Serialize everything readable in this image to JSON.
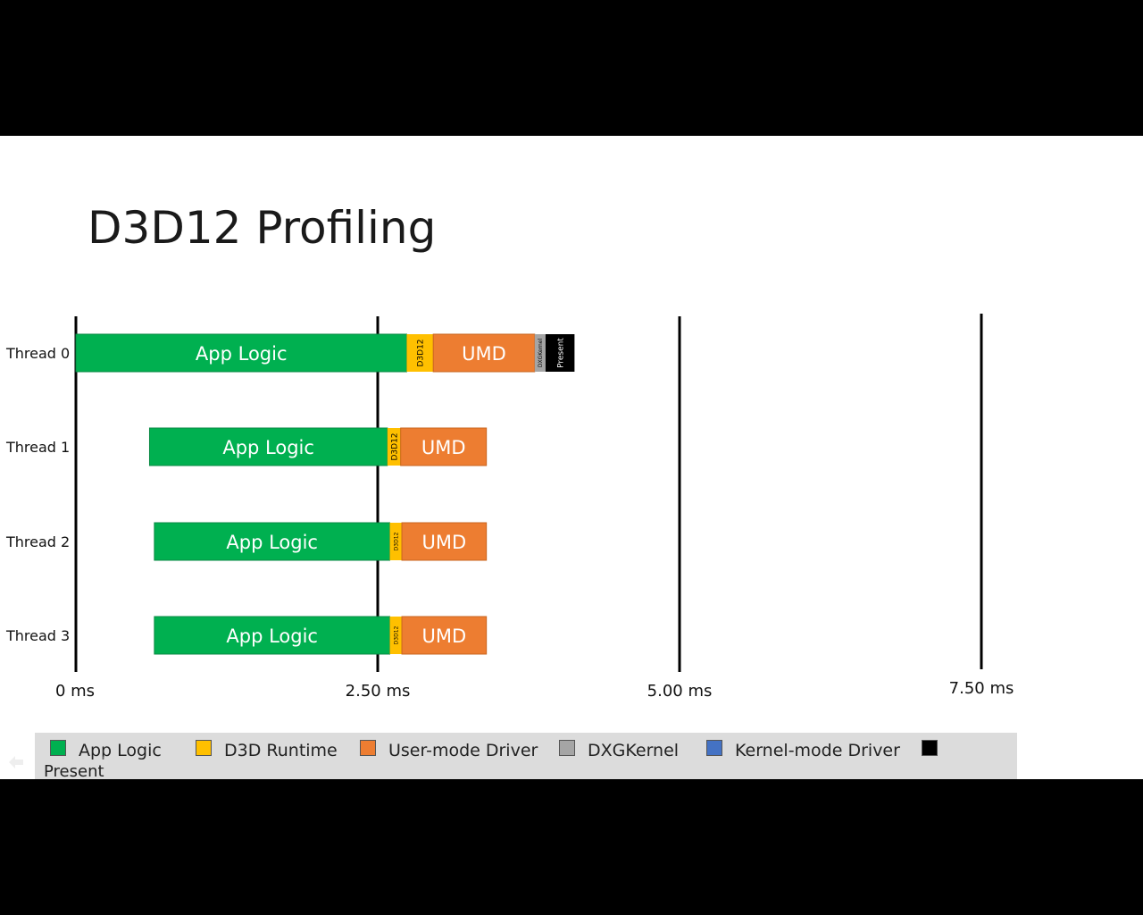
{
  "slide": {
    "title": "D3D12 Profiling"
  },
  "chart_data": {
    "type": "bar",
    "orientation": "horizontal-stacked-timeline",
    "xlabel": "",
    "ylabel": "",
    "xlim": [
      0,
      7.5
    ],
    "x_unit": "ms",
    "x_ticks": [
      {
        "value": 0,
        "label": "0 ms"
      },
      {
        "value": 2.5,
        "label": "2.50 ms"
      },
      {
        "value": 5.0,
        "label": "5.00 ms"
      },
      {
        "value": 7.5,
        "label": "7.50 ms"
      }
    ],
    "categories": [
      "Thread 0",
      "Thread 1",
      "Thread 2",
      "Thread 3"
    ],
    "segments": [
      [
        {
          "series": "App Logic",
          "start": 0.0,
          "end": 2.74,
          "label": "App Logic"
        },
        {
          "series": "D3D Runtime",
          "start": 2.74,
          "end": 2.96,
          "label": "D3D12"
        },
        {
          "series": "User-mode Driver",
          "start": 2.96,
          "end": 3.8,
          "label": "UMD"
        },
        {
          "series": "DXGKernel",
          "start": 3.8,
          "end": 3.89,
          "label": "DXGKernel"
        },
        {
          "series": "Present",
          "start": 3.89,
          "end": 4.13,
          "label": "Present"
        }
      ],
      [
        {
          "series": "App Logic",
          "start": 0.61,
          "end": 2.58,
          "label": "App Logic"
        },
        {
          "series": "D3D Runtime",
          "start": 2.58,
          "end": 2.69,
          "label": "D3D12"
        },
        {
          "series": "User-mode Driver",
          "start": 2.69,
          "end": 3.4,
          "label": "UMD"
        }
      ],
      [
        {
          "series": "App Logic",
          "start": 0.65,
          "end": 2.6,
          "label": "App Logic"
        },
        {
          "series": "D3D Runtime",
          "start": 2.6,
          "end": 2.7,
          "label": "D3D12"
        },
        {
          "series": "User-mode Driver",
          "start": 2.7,
          "end": 3.4,
          "label": "UMD"
        }
      ],
      [
        {
          "series": "App Logic",
          "start": 0.65,
          "end": 2.6,
          "label": "App Logic"
        },
        {
          "series": "D3D Runtime",
          "start": 2.6,
          "end": 2.7,
          "label": "D3D12"
        },
        {
          "series": "User-mode Driver",
          "start": 2.7,
          "end": 3.4,
          "label": "UMD"
        }
      ]
    ],
    "legend": {
      "placement": "bottom",
      "entries": [
        {
          "name": "App Logic",
          "color": "#00b050"
        },
        {
          "name": "D3D Runtime",
          "color": "#ffc000"
        },
        {
          "name": "User-mode  Driver",
          "color": "#ed7d31"
        },
        {
          "name": "DXGKernel",
          "color": "#a5a5a5"
        },
        {
          "name": "Kernel-mode  Driver",
          "color": "#4472c4"
        },
        {
          "name": "Present",
          "color": "#000000"
        }
      ]
    },
    "series_colors": {
      "App Logic": "#00b050",
      "D3D Runtime": "#ffc000",
      "User-mode Driver": "#ed7d31",
      "DXGKernel": "#a5a5a5",
      "Kernel-mode Driver": "#4472c4",
      "Present": "#000000"
    },
    "grid": "vertical-at-ticks"
  }
}
